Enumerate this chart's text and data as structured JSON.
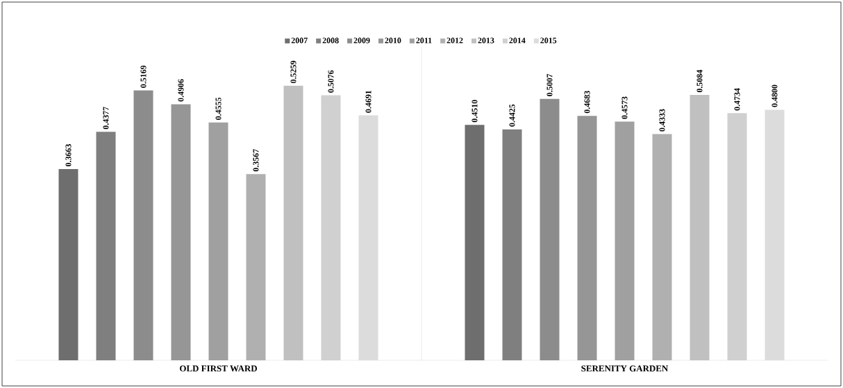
{
  "chart_data": {
    "type": "bar",
    "categories": [
      "OLD FIRST WARD",
      "SERENITY GARDEN"
    ],
    "ylim": [
      0,
      0.6
    ],
    "legend": "top",
    "series": [
      {
        "name": "2007",
        "color": "#6e6e6e",
        "values": [
          0.3663,
          0.451
        ],
        "value_labels": [
          "0.3663",
          "0.4510"
        ]
      },
      {
        "name": "2008",
        "color": "#7f7f7f",
        "values": [
          0.4377,
          0.4425
        ],
        "value_labels": [
          "0.4377",
          "0.4425"
        ]
      },
      {
        "name": "2009",
        "color": "#8c8c8c",
        "values": [
          0.5169,
          0.5007
        ],
        "value_labels": [
          "0.5169",
          "0.5007"
        ]
      },
      {
        "name": "2010",
        "color": "#969696",
        "values": [
          0.4906,
          0.4683
        ],
        "value_labels": [
          "0.4906",
          "0.4683"
        ]
      },
      {
        "name": "2011",
        "color": "#a0a0a0",
        "values": [
          0.4555,
          0.4573
        ],
        "value_labels": [
          "0.4555",
          "0.4573"
        ]
      },
      {
        "name": "2012",
        "color": "#b0b0b0",
        "values": [
          0.3567,
          0.4333
        ],
        "value_labels": [
          "0.3567",
          "0.4333"
        ]
      },
      {
        "name": "2013",
        "color": "#c0c0c0",
        "values": [
          0.5259,
          0.5084
        ],
        "value_labels": [
          "0.5259",
          "0.5084"
        ]
      },
      {
        "name": "2014",
        "color": "#d0d0d0",
        "values": [
          0.5076,
          0.4734
        ],
        "value_labels": [
          "0.5076",
          "0.4734"
        ]
      },
      {
        "name": "2015",
        "color": "#dcdcdc",
        "values": [
          0.4691,
          0.48
        ],
        "value_labels": [
          "0.4691",
          "0.4800"
        ]
      }
    ]
  }
}
